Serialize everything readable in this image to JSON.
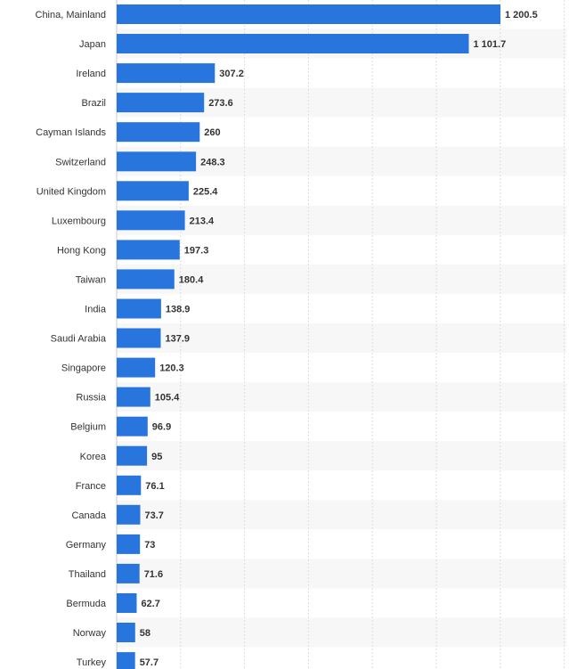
{
  "chart_data": {
    "type": "bar",
    "orientation": "horizontal",
    "categories": [
      "China, Mainland",
      "Japan",
      "Ireland",
      "Brazil",
      "Cayman Islands",
      "Switzerland",
      "United Kingdom",
      "Luxembourg",
      "Hong Kong",
      "Taiwan",
      "India",
      "Saudi Arabia",
      "Singapore",
      "Russia",
      "Belgium",
      "Korea",
      "France",
      "Canada",
      "Germany",
      "Thailand",
      "Bermuda",
      "Norway",
      "Turkey"
    ],
    "values": [
      1200.5,
      1101.7,
      307.2,
      273.6,
      260,
      248.3,
      225.4,
      213.4,
      197.3,
      180.4,
      138.9,
      137.9,
      120.3,
      105.4,
      96.9,
      95,
      76.1,
      73.7,
      73,
      71.6,
      62.7,
      58,
      57.7
    ],
    "value_labels": [
      "1 200.5",
      "1 101.7",
      "307.2",
      "273.6",
      "260",
      "248.3",
      "225.4",
      "213.4",
      "197.3",
      "180.4",
      "138.9",
      "137.9",
      "120.3",
      "105.4",
      "96.9",
      "95",
      "76.1",
      "73.7",
      "73",
      "71.6",
      "62.7",
      "58",
      "57.7"
    ],
    "title": "",
    "xlabel": "",
    "ylabel": "",
    "xlim": [
      0,
      1400
    ],
    "grid": true,
    "bar_color": "#2876dd",
    "stripe_color": "#f7f7f7",
    "grid_color": "#dddddd"
  }
}
